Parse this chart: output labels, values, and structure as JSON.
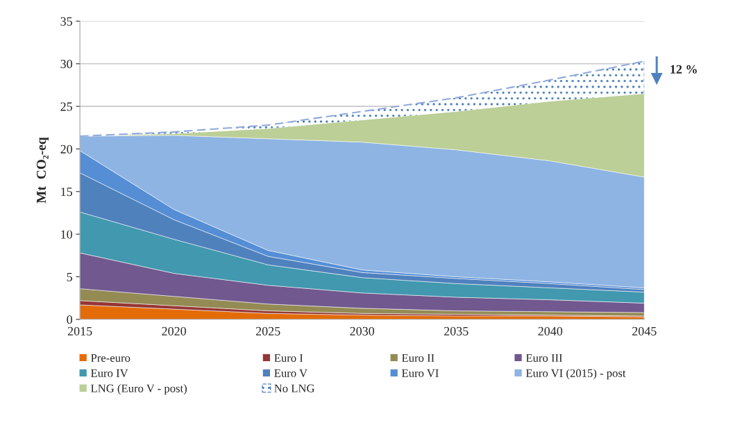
{
  "chart_data": {
    "type": "area",
    "stacked": true,
    "ylabel": "Mt  CO₂-eq",
    "x": [
      2015,
      2020,
      2025,
      2030,
      2035,
      2040,
      2045
    ],
    "xlim": [
      2015,
      2045
    ],
    "xticks": [
      2015,
      2020,
      2025,
      2030,
      2035,
      2040,
      2045
    ],
    "ylim": [
      0,
      35
    ],
    "yticks": [
      0,
      5,
      10,
      15,
      20,
      25,
      30,
      35
    ],
    "grid": "y",
    "legend": "bottom",
    "annotations": [
      "12 %"
    ],
    "series": [
      {
        "name": "Pre-euro",
        "color": "#e36c09",
        "values": [
          1.7,
          1.2,
          0.7,
          0.5,
          0.4,
          0.4,
          0.3
        ]
      },
      {
        "name": "Euro I",
        "color": "#953735",
        "values": [
          0.5,
          0.4,
          0.3,
          0.2,
          0.2,
          0.1,
          0.1
        ]
      },
      {
        "name": "Euro II",
        "color": "#948a54",
        "values": [
          1.4,
          1.1,
          0.8,
          0.6,
          0.4,
          0.4,
          0.4
        ]
      },
      {
        "name": "Euro III",
        "color": "#71588f",
        "values": [
          4.2,
          2.7,
          2.2,
          1.8,
          1.6,
          1.4,
          1.1
        ]
      },
      {
        "name": "Euro IV",
        "color": "#4198af",
        "values": [
          4.8,
          4.0,
          2.4,
          1.8,
          1.6,
          1.4,
          1.3
        ]
      },
      {
        "name": "Euro V",
        "color": "#4f81bd",
        "values": [
          4.6,
          2.3,
          1.0,
          0.6,
          0.6,
          0.5,
          0.3
        ]
      },
      {
        "name": "Euro VI",
        "color": "#558ed5",
        "values": [
          2.6,
          1.2,
          0.7,
          0.3,
          0.2,
          0.2,
          0.2
        ]
      },
      {
        "name": "Euro VI (2015) - post",
        "color": "#8eb4e3",
        "values": [
          1.7,
          8.7,
          13.1,
          15.0,
          14.9,
          14.2,
          13.0
        ]
      },
      {
        "name": "LNG (Euro V - post)",
        "color": "#bbcf97",
        "values": [
          0,
          0.2,
          1.2,
          2.6,
          4.5,
          7.0,
          9.8
        ]
      },
      {
        "name": "No LNG",
        "color": "#4f81bd",
        "line_style": "dashed",
        "values": [
          0,
          0.2,
          0.4,
          1.0,
          1.6,
          2.5,
          3.8
        ]
      }
    ]
  }
}
